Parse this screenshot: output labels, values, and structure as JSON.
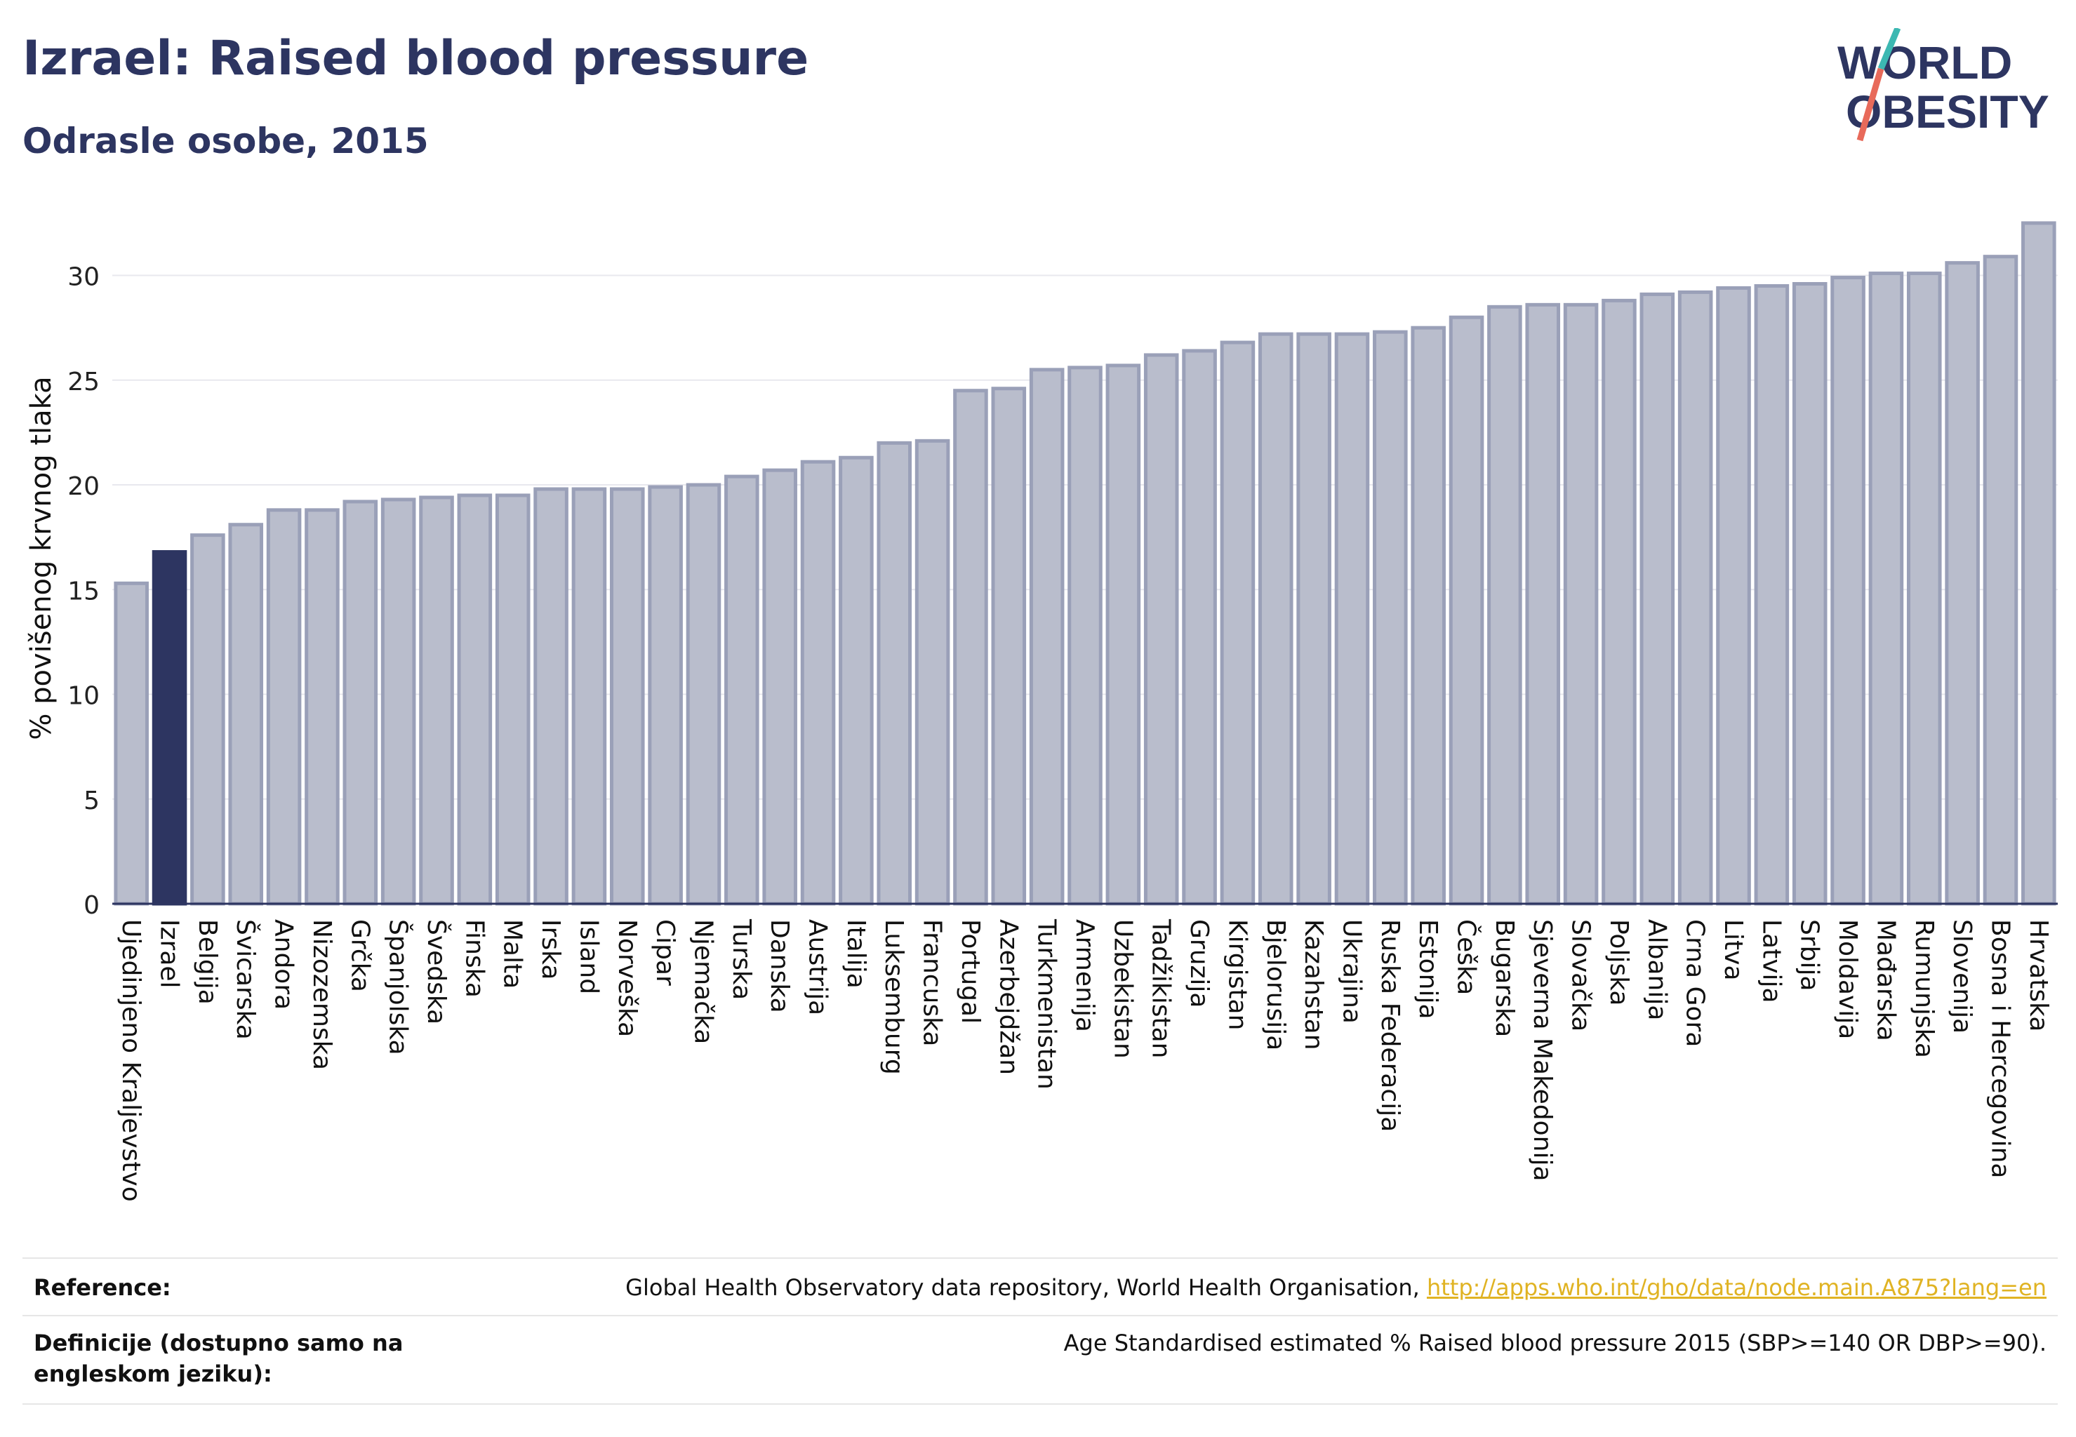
{
  "header": {
    "title": "Izrael: Raised blood pressure",
    "subtitle": "Odrasle osobe, 2015"
  },
  "logo": {
    "line1": "WORLD",
    "line2": "OBESITY"
  },
  "chart_data": {
    "type": "bar",
    "ylabel": "% povišenog krvnog tlaka",
    "ylim": [
      0,
      33
    ],
    "yticks": [
      0,
      5,
      10,
      15,
      20,
      25,
      30
    ],
    "grid": true,
    "highlight": "Izrael",
    "colors": {
      "bar": "#b9bdcc",
      "bar_border": "#9aa0b8",
      "highlight": "#2d3561"
    },
    "categories": [
      "Ujedinjeno Kraljevstvo",
      "Izrael",
      "Belgija",
      "Švicarska",
      "Andora",
      "Nizozemska",
      "Grčka",
      "Španjolska",
      "Švedska",
      "Finska",
      "Malta",
      "Irska",
      "Island",
      "Norveška",
      "Cipar",
      "Njemačka",
      "Turska",
      "Danska",
      "Austrija",
      "Italija",
      "Luksemburg",
      "Francuska",
      "Portugal",
      "Azerbejdžan",
      "Turkmenistan",
      "Armenija",
      "Uzbekistan",
      "Tadžikistan",
      "Gruzija",
      "Kirgistan",
      "Bjelorusija",
      "Kazahstan",
      "Ukrajina",
      "Ruska Federacija",
      "Estonija",
      "Češka",
      "Bugarska",
      "Sjeverna Makedonija",
      "Slovačka",
      "Poljska",
      "Albanija",
      "Crna Gora",
      "Litva",
      "Latvija",
      "Srbija",
      "Moldavija",
      "Mađarska",
      "Rumunjska",
      "Slovenija",
      "Bosna i Hercegovina",
      "Hrvatska"
    ],
    "values": [
      15.3,
      16.8,
      17.6,
      18.1,
      18.8,
      18.8,
      19.2,
      19.3,
      19.4,
      19.5,
      19.5,
      19.8,
      19.8,
      19.8,
      19.9,
      20.0,
      20.4,
      20.7,
      21.1,
      21.3,
      22.0,
      22.1,
      24.5,
      24.6,
      25.5,
      25.6,
      25.7,
      26.2,
      26.4,
      26.8,
      27.2,
      27.2,
      27.2,
      27.3,
      27.5,
      28.0,
      28.5,
      28.6,
      28.6,
      28.8,
      29.1,
      29.2,
      29.4,
      29.5,
      29.6,
      29.9,
      30.1,
      30.1,
      30.6,
      30.9,
      32.5
    ]
  },
  "reference": {
    "label": "Reference:",
    "text": "Global Health Observatory data repository, World Health Organisation, ",
    "link": "http://apps.who.int/gho/data/node.main.A875?lang=en"
  },
  "definition": {
    "label": "Definicije (dostupno samo na engleskom jeziku):",
    "text": "Age Standardised estimated % Raised blood pressure 2015 (SBP>=140 OR DBP>=90)."
  }
}
